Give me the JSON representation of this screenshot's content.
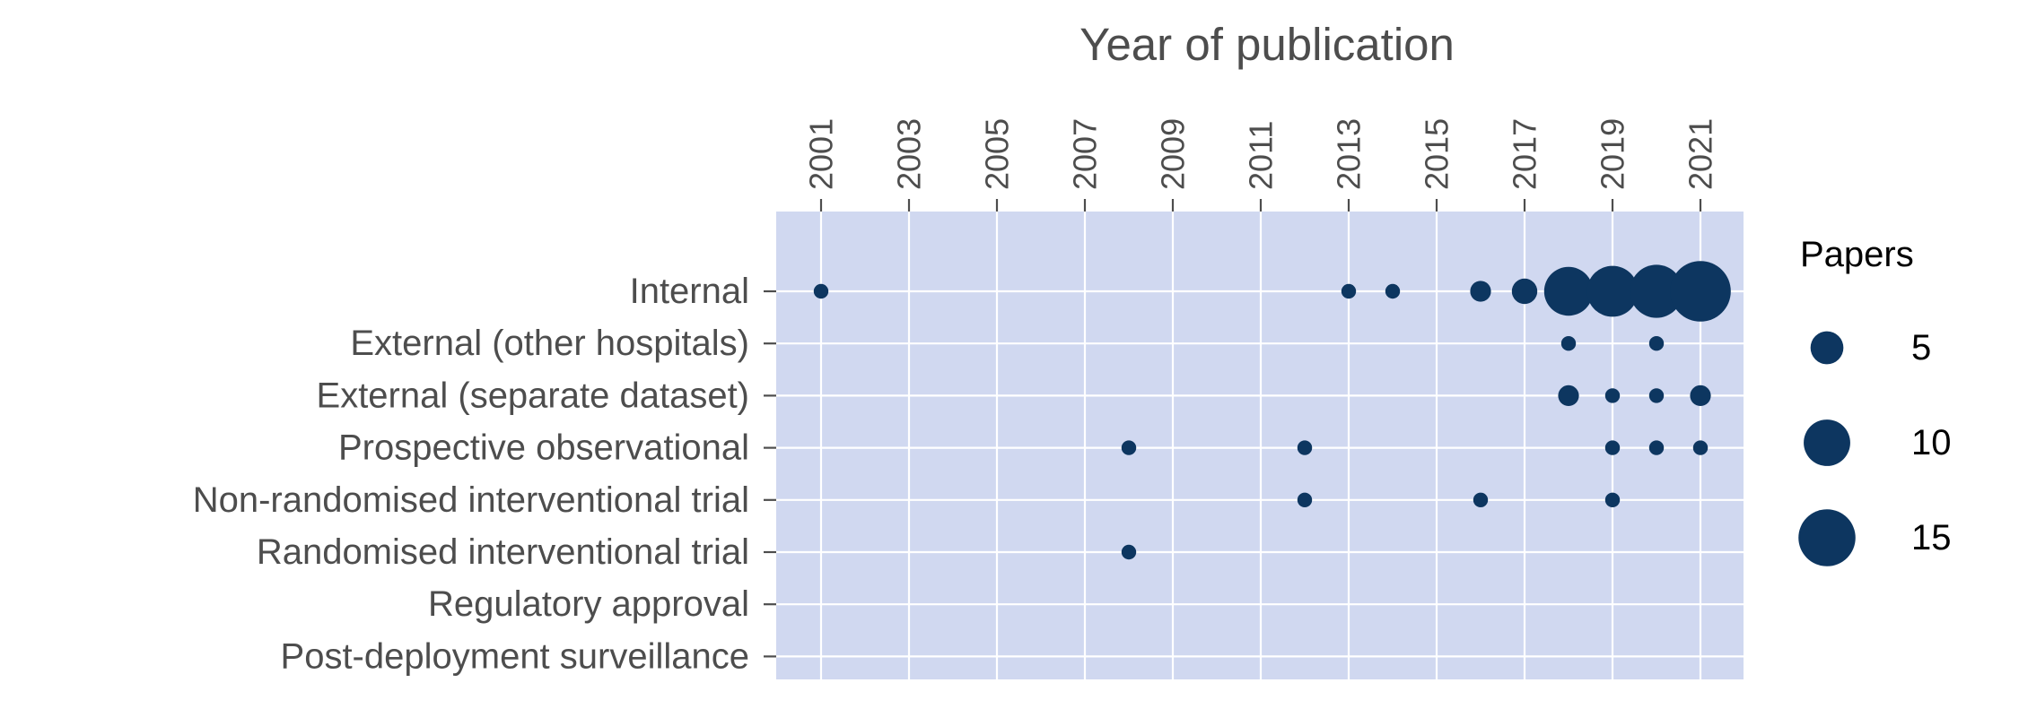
{
  "chart_data": {
    "type": "scatter",
    "title": "",
    "xlabel": "Year of publication",
    "ylabel": "",
    "x_axis_position": "top",
    "x_ticks": [
      2001,
      2003,
      2005,
      2007,
      2009,
      2011,
      2013,
      2015,
      2017,
      2019,
      2021
    ],
    "x_tick_labels": [
      "2001",
      "2003",
      "2005",
      "2007",
      "2009",
      "2011",
      "2013",
      "2015",
      "2017",
      "2019",
      "2021"
    ],
    "xlim": [
      2000,
      2022
    ],
    "categories": [
      "Internal",
      "External (other hospitals)",
      "External (separate dataset)",
      "Prospective observational",
      "Non-randomised interventional trial",
      "Randomised interventional trial",
      "Regulatory approval",
      "Post-deployment surveillance"
    ],
    "points": [
      {
        "year": 2001,
        "category": "Internal",
        "papers": 1
      },
      {
        "year": 2013,
        "category": "Internal",
        "papers": 1
      },
      {
        "year": 2014,
        "category": "Internal",
        "papers": 1
      },
      {
        "year": 2016,
        "category": "Internal",
        "papers": 2
      },
      {
        "year": 2017,
        "category": "Internal",
        "papers": 3
      },
      {
        "year": 2018,
        "category": "Internal",
        "papers": 11
      },
      {
        "year": 2019,
        "category": "Internal",
        "papers": 12
      },
      {
        "year": 2020,
        "category": "Internal",
        "papers": 13
      },
      {
        "year": 2021,
        "category": "Internal",
        "papers": 17
      },
      {
        "year": 2018,
        "category": "External (other hospitals)",
        "papers": 1
      },
      {
        "year": 2020,
        "category": "External (other hospitals)",
        "papers": 1
      },
      {
        "year": 2018,
        "category": "External (separate dataset)",
        "papers": 2
      },
      {
        "year": 2019,
        "category": "External (separate dataset)",
        "papers": 1
      },
      {
        "year": 2020,
        "category": "External (separate dataset)",
        "papers": 1
      },
      {
        "year": 2021,
        "category": "External (separate dataset)",
        "papers": 2
      },
      {
        "year": 2008,
        "category": "Prospective observational",
        "papers": 1
      },
      {
        "year": 2012,
        "category": "Prospective observational",
        "papers": 1
      },
      {
        "year": 2019,
        "category": "Prospective observational",
        "papers": 1
      },
      {
        "year": 2020,
        "category": "Prospective observational",
        "papers": 1
      },
      {
        "year": 2021,
        "category": "Prospective observational",
        "papers": 1
      },
      {
        "year": 2012,
        "category": "Non-randomised interventional trial",
        "papers": 1
      },
      {
        "year": 2016,
        "category": "Non-randomised interventional trial",
        "papers": 1
      },
      {
        "year": 2019,
        "category": "Non-randomised interventional trial",
        "papers": 1
      },
      {
        "year": 2008,
        "category": "Randomised interventional trial",
        "papers": 1
      }
    ],
    "legend": {
      "title": "Papers",
      "placement": "right",
      "values": [
        5,
        10,
        15
      ],
      "labels": [
        "5",
        "10",
        "15"
      ]
    },
    "grid": true,
    "colors": {
      "panel_background": "#d0d8f0",
      "grid": "#ffffff",
      "point": "#0d3660",
      "text": "#4d4d4d",
      "legend_text": "#000000"
    }
  }
}
